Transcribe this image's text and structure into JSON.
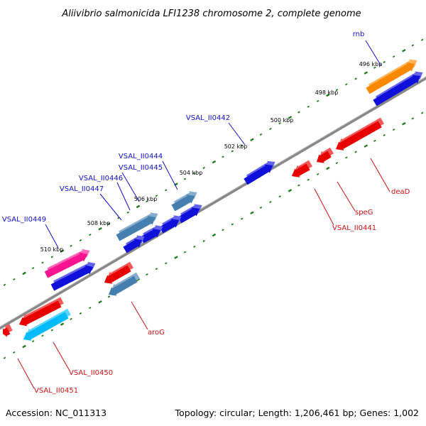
{
  "title": "Aliivibrio salmonicida LFI1238 chromosome 2, complete genome",
  "footer": {
    "accession": "Accession: NC_011313",
    "summary": "Topology: circular; Length: 1,206,461 bp; Genes: 1,002"
  },
  "colors": {
    "backbone": "#808080",
    "ticks": "#1f7a1f",
    "forward_label": "#1010cc",
    "reverse_label": "#cc1111"
  },
  "kbp_labels": [
    "496 kbp",
    "498 kbp",
    "500 kbp",
    "502 kbp",
    "504 kbp",
    "506 kbp",
    "508 kbp",
    "510 kbp"
  ],
  "genes": [
    {
      "label": "rnb",
      "color": "#ff8c00",
      "strand": "+"
    },
    {
      "label": "",
      "color": "#1010e0",
      "strand": "+"
    },
    {
      "label": "VSAL_II0442",
      "color": "#1010e0",
      "strand": "+"
    },
    {
      "label": "VSAL_II0444",
      "color": "#4682b4",
      "strand": "+"
    },
    {
      "label": "",
      "color": "#1010e0",
      "strand": "+"
    },
    {
      "label": "VSAL_II0445",
      "color": "#1010e0",
      "strand": "+"
    },
    {
      "label": "VSAL_II0446",
      "color": "#1010e0",
      "strand": "+"
    },
    {
      "label": "VSAL_II0447",
      "color": "#4682b4",
      "strand": "+"
    },
    {
      "label": "",
      "color": "#1010e0",
      "strand": "+"
    },
    {
      "label": "VSAL_II0449",
      "color": "#ff1493",
      "strand": "+"
    },
    {
      "label": "",
      "color": "#1010e0",
      "strand": "+"
    },
    {
      "label": "deaD",
      "color": "#ee0000",
      "strand": "-"
    },
    {
      "label": "speG",
      "color": "#ee0000",
      "strand": "-"
    },
    {
      "label": "VSAL_II0441",
      "color": "#ee0000",
      "strand": "-"
    },
    {
      "label": "aroG",
      "color": "#ee0000",
      "strand": "-"
    },
    {
      "label": "",
      "color": "#4682b4",
      "strand": "-"
    },
    {
      "label": "VSAL_II0450",
      "color": "#ee0000",
      "strand": "-"
    },
    {
      "label": "",
      "color": "#00bfff",
      "strand": "-"
    },
    {
      "label": "VSAL_II0451",
      "color": "#ee0000",
      "strand": "-"
    }
  ]
}
